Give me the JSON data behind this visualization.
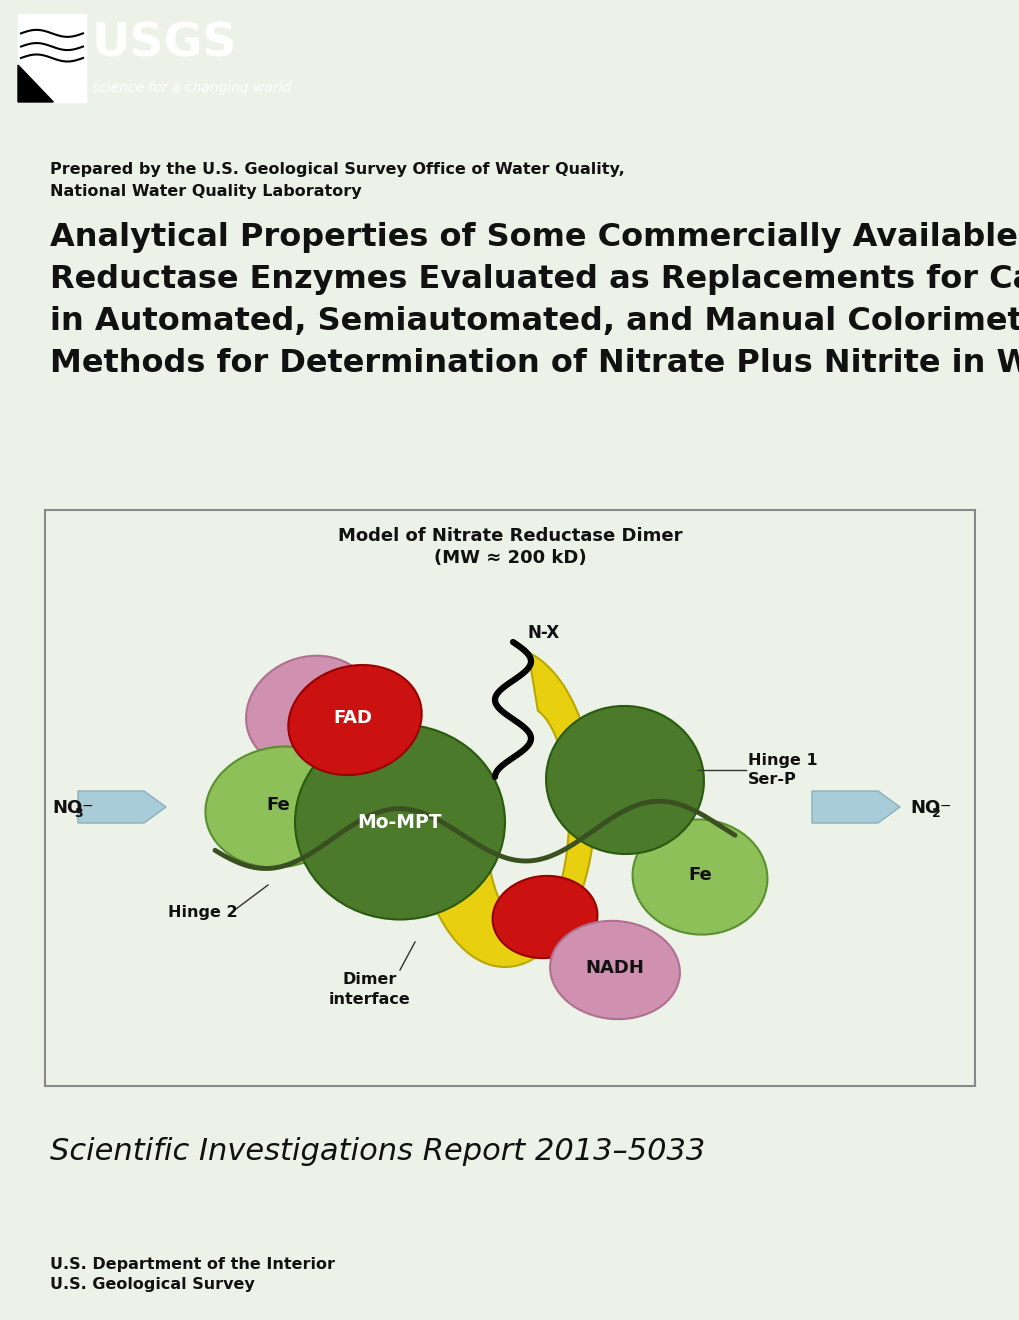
{
  "bg_color": "#edf2e8",
  "header_bg": "#1c1c1c",
  "colors": {
    "light_green": "#8ec05a",
    "dark_green": "#4a7a2a",
    "red": "#cc1111",
    "yellow": "#e8d010",
    "pink": "#d090b0",
    "arrow_blue": "#a8ccd8",
    "box_border": "#888888"
  },
  "prepared_text_line1": "Prepared by the U.S. Geological Survey Office of Water Quality,",
  "prepared_text_line2": "National Water Quality Laboratory",
  "title_line1": "Analytical Properties of Some Commercially Available Nitrate",
  "title_line2": "Reductase Enzymes Evaluated as Replacements for Cadmium",
  "title_line3": "in Automated, Semiautomated, and Manual Colorimetric",
  "title_line4": "Methods for Determination of Nitrate Plus Nitrite in Water",
  "report_text": "Scientific Investigations Report 2013–5033",
  "footer_line1": "U.S. Department of the Interior",
  "footer_line2": "U.S. Geological Survey",
  "diagram_title1": "Model of Nitrate Reductase Dimer",
  "diagram_title2": "(MW ≈ 200 kD)"
}
